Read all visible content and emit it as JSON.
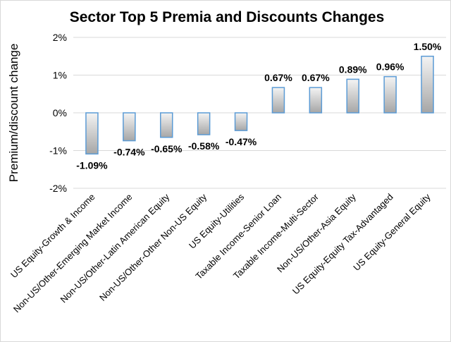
{
  "chart_data": {
    "type": "bar",
    "title": "Sector Top 5 Premia and Discounts Changes",
    "xlabel": "",
    "ylabel": "Premium/discount change",
    "ylim": [
      -2,
      2
    ],
    "yticks": [
      2,
      1,
      0,
      -1,
      -2
    ],
    "ytick_labels": [
      "2%",
      "1%",
      "0%",
      "-1%",
      "-2%"
    ],
    "grid": true,
    "legend": "none",
    "categories": [
      "US Equity-Growth & Income",
      "Non-US/Other-Emerging Market Income",
      "Non-US/Other-Latin American Equity",
      "Non-US/Other-Other Non-US Equity",
      "US Equity-Utilities",
      "Taxable Income-Senior Loan",
      "Taxable Income-Multi-Sector",
      "Non-US/Other-Asia Equity",
      "US Equity-Equity Tax-Advantaged",
      "US Equity-General Equity"
    ],
    "values": [
      -1.09,
      -0.74,
      -0.65,
      -0.58,
      -0.47,
      0.67,
      0.67,
      0.89,
      0.96,
      1.5
    ],
    "data_labels": [
      "-1.09%",
      "-0.74%",
      "-0.65%",
      "-0.58%",
      "-0.47%",
      "0.67%",
      "0.67%",
      "0.89%",
      "0.96%",
      "1.50%"
    ],
    "colors": {
      "bar_outline": "#5b9bd5",
      "bar_fill_light": "#f4f4f4",
      "bar_fill_dark": "#a6a6a6",
      "gridline": "#d9d9d9"
    }
  }
}
